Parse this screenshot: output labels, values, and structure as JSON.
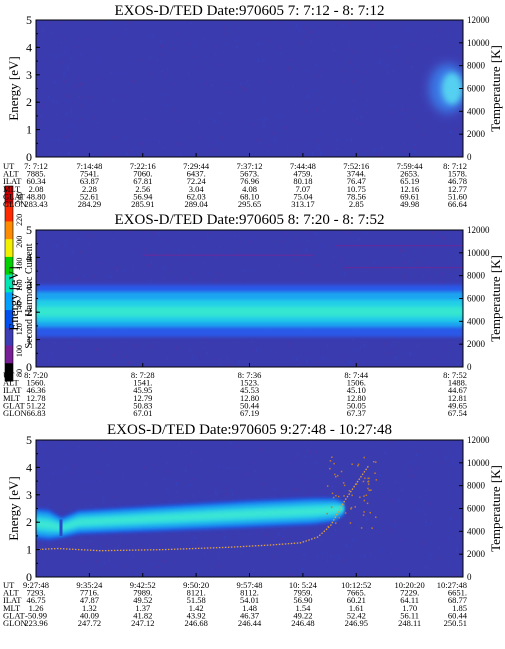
{
  "colorbar": {
    "label": "Second Harmonic Current",
    "ticks": [
      "240",
      "220",
      "200",
      "180",
      "160",
      "140",
      "120",
      "100",
      "80"
    ],
    "colors": [
      "#c80000",
      "#ff2a00",
      "#ff8c00",
      "#f0f000",
      "#00d200",
      "#00e6b4",
      "#00a0ff",
      "#0050f0",
      "#3c3cb4",
      "#781e96",
      "#000000"
    ]
  },
  "chart_data": [
    {
      "type": "heatmap",
      "title": "EXOS-D/TED    Date:970605  7: 7:12 - 8: 7:12",
      "ylabel": "Energy [eV]",
      "y2label": "Temperature [K]",
      "ylim": [
        0,
        5
      ],
      "y2lim": [
        0,
        12000
      ],
      "yticks": [
        "0",
        "1",
        "2",
        "3",
        "4",
        "5"
      ],
      "y2ticks": [
        "0",
        "2000",
        "4000",
        "6000",
        "8000",
        "10000",
        "12000"
      ],
      "background": "#3b3bb0",
      "features": [
        {
          "name": "bright patch",
          "x_start": 0.93,
          "x_end": 1.0,
          "y_center": 2.5,
          "y_halfwidth": 0.9,
          "color": "#55d0f0"
        }
      ],
      "orbit_rows": [
        {
          "label": "UT",
          "values": [
            "7: 7:12",
            "7:14:48",
            "7:22:16",
            "7:29:44",
            "7:37:12",
            "7:44:48",
            "7:52:16",
            "7:59:44",
            "8: 7:12"
          ]
        },
        {
          "label": "ALT",
          "values": [
            "7885.",
            "7541.",
            "7060.",
            "6437.",
            "5673.",
            "4759.",
            "3744.",
            "2653.",
            "1578."
          ]
        },
        {
          "label": "ILAT",
          "values": [
            "60.34",
            "63.87",
            "67.81",
            "72.24",
            "76.96",
            "80.18",
            "76.47",
            "65.19",
            "46.78"
          ]
        },
        {
          "label": "MLT",
          "values": [
            "2.08",
            "2.28",
            "2.56",
            "3.04",
            "4.08",
            "7.07",
            "10.75",
            "12.16",
            "12.77"
          ]
        },
        {
          "label": "GLAT",
          "values": [
            "48.80",
            "52.61",
            "56.94",
            "62.03",
            "68.10",
            "75.04",
            "78.56",
            "69.61",
            "51.60"
          ]
        },
        {
          "label": "GLON",
          "values": [
            "283.43",
            "284.29",
            "285.91",
            "289.04",
            "295.65",
            "313.17",
            "2.85",
            "49.98",
            "66.64"
          ]
        }
      ]
    },
    {
      "type": "heatmap",
      "title": "EXOS-D/TED    Date:970605  8: 7:20 - 8: 7:52",
      "ylabel": "Energy [eV]",
      "y2label": "Temperature [K]",
      "ylim": [
        0,
        5
      ],
      "y2lim": [
        0,
        12000
      ],
      "yticks": [
        "0",
        "1",
        "2",
        "3",
        "4",
        "5"
      ],
      "y2ticks": [
        "0",
        "2000",
        "4000",
        "6000",
        "8000",
        "10000",
        "12000"
      ],
      "background": "#3b3bb0",
      "bands": [
        {
          "y_from": 1.1,
          "y_to": 3.0,
          "color": "#2a58e8"
        },
        {
          "y_from": 1.45,
          "y_to": 2.75,
          "color": "#1aa4f0"
        },
        {
          "y_from": 1.65,
          "y_to": 2.45,
          "color": "#22d0e6"
        },
        {
          "y_from": 1.85,
          "y_to": 2.2,
          "color": "#34e6d0"
        }
      ],
      "orbit_rows": [
        {
          "label": "UT",
          "values": [
            "8: 7:20",
            "8: 7:28",
            "8: 7:36",
            "8: 7:44",
            "8: 7:52"
          ]
        },
        {
          "label": "ALT",
          "values": [
            "1560.",
            "1541.",
            "1523.",
            "1506.",
            "1488."
          ]
        },
        {
          "label": "ILAT",
          "values": [
            "46.36",
            "45.95",
            "45.53",
            "45.10",
            "44.67"
          ]
        },
        {
          "label": "MLT",
          "values": [
            "12.78",
            "12.79",
            "12.80",
            "12.80",
            "12.81"
          ]
        },
        {
          "label": "GLAT",
          "values": [
            "51.22",
            "50.83",
            "50.44",
            "50.05",
            "49.65"
          ]
        },
        {
          "label": "GLON",
          "values": [
            "66.83",
            "67.01",
            "67.19",
            "67.37",
            "67.54"
          ]
        }
      ]
    },
    {
      "type": "heatmap",
      "title": "EXOS-D/TED    Date:970605  9:27:48 - 10:27:48",
      "ylabel": "Energy [eV]",
      "y2label": "Temperature [K]",
      "ylim": [
        0,
        5
      ],
      "y2lim": [
        0,
        12000
      ],
      "yticks": [
        "0",
        "1",
        "2",
        "3",
        "4",
        "5"
      ],
      "y2ticks": [
        "0",
        "2000",
        "4000",
        "6000",
        "8000",
        "10000",
        "12000"
      ],
      "background": "#3b3bb0",
      "band_profile": {
        "x": [
          0.0,
          0.03,
          0.06,
          0.1,
          0.3,
          0.5,
          0.65,
          0.7,
          0.72
        ],
        "center": [
          1.95,
          1.9,
          1.8,
          2.0,
          2.15,
          2.3,
          2.4,
          2.45,
          2.5
        ],
        "halfwidth": [
          0.45,
          0.45,
          0.3,
          0.35,
          0.38,
          0.4,
          0.4,
          0.35,
          0.2
        ]
      },
      "temperature_trace": {
        "x": [
          0.0,
          0.05,
          0.15,
          0.3,
          0.45,
          0.55,
          0.62,
          0.66,
          0.69,
          0.72,
          0.75,
          0.78
        ],
        "y": [
          2400,
          2500,
          2300,
          2400,
          2600,
          2800,
          3000,
          3500,
          4500,
          6500,
          8200,
          9800
        ]
      },
      "orbit_rows": [
        {
          "label": "UT",
          "values": [
            "9:27:48",
            "9:35:24",
            "9:42:52",
            "9:50:20",
            "9:57:48",
            "10: 5:24",
            "10:12:52",
            "10:20:20",
            "10:27:48"
          ]
        },
        {
          "label": "ALT",
          "values": [
            "7293.",
            "7716.",
            "7989.",
            "8121.",
            "8112.",
            "7959.",
            "7665.",
            "7229.",
            "6651."
          ]
        },
        {
          "label": "ILAT",
          "values": [
            "46.75",
            "47.87",
            "49.52",
            "51.58",
            "54.01",
            "56.90",
            "60.21",
            "64.11",
            "68.77"
          ]
        },
        {
          "label": "MLT",
          "values": [
            "1.26",
            "1.32",
            "1.37",
            "1.42",
            "1.48",
            "1.54",
            "1.61",
            "1.70",
            "1.85"
          ]
        },
        {
          "label": "GLAT",
          "values": [
            "-50.99",
            "40.09",
            "41.82",
            "43.92",
            "46.37",
            "49.22",
            "52.42",
            "56.11",
            "60.44"
          ]
        },
        {
          "label": "GLON",
          "values": [
            "223.96",
            "247.72",
            "247.12",
            "246.68",
            "246.44",
            "246.48",
            "246.95",
            "248.11",
            "250.51"
          ]
        }
      ]
    }
  ]
}
